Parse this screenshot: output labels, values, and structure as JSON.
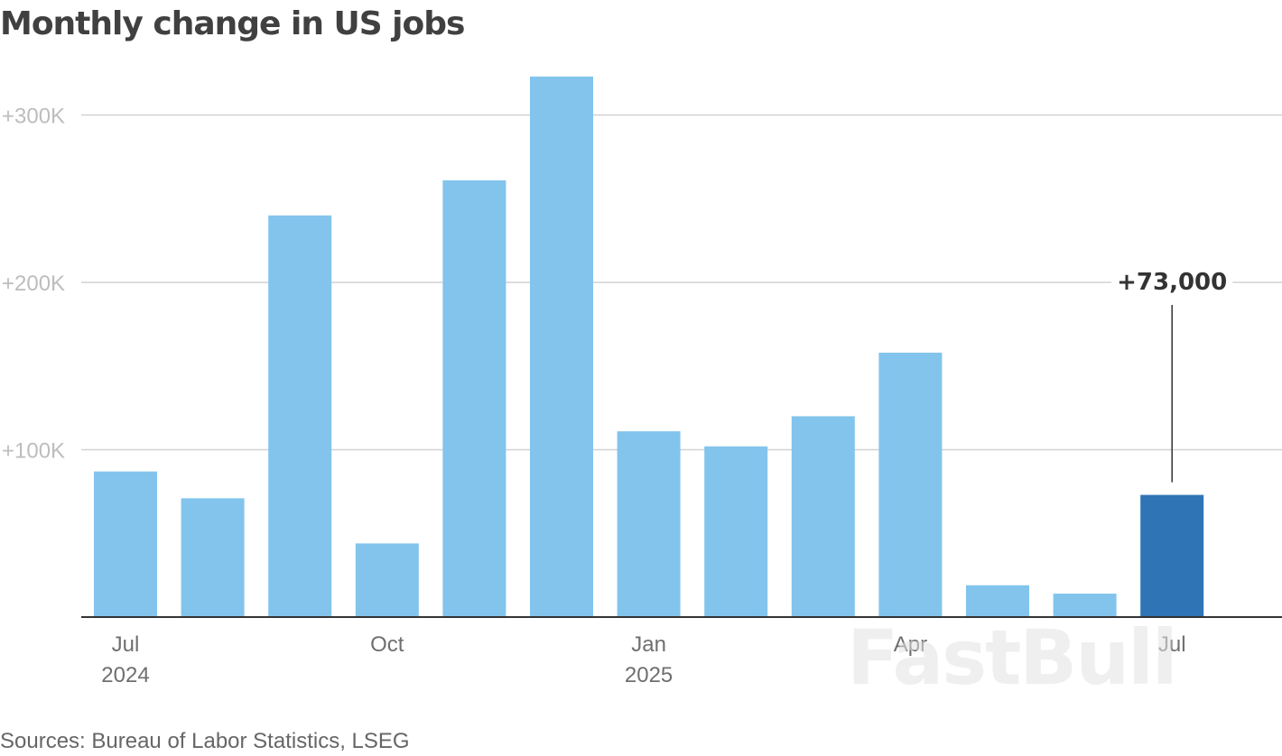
{
  "chart_data": {
    "type": "bar",
    "title": "Monthly change in US jobs",
    "xlabel": "",
    "ylabel": "",
    "ylim": [
      0,
      320000
    ],
    "y_ticks": [
      {
        "value": 100000,
        "label": "+100K"
      },
      {
        "value": 200000,
        "label": "+200K"
      },
      {
        "value": 300000,
        "label": "+300K"
      }
    ],
    "grid": true,
    "legend": "none",
    "categories": [
      "Jul 2024",
      "Aug 2024",
      "Sep 2024",
      "Oct 2024",
      "Nov 2024",
      "Dec 2024",
      "Jan 2025",
      "Feb 2025",
      "Mar 2025",
      "Apr 2025",
      "May 2025",
      "Jun 2025",
      "Jul 2025"
    ],
    "values": [
      87000,
      71000,
      240000,
      44000,
      261000,
      323000,
      111000,
      102000,
      120000,
      158000,
      19000,
      14000,
      73000
    ],
    "x_tick_labels": [
      {
        "index": 0,
        "month": "Jul",
        "year": "2024"
      },
      {
        "index": 3,
        "month": "Oct",
        "year": ""
      },
      {
        "index": 6,
        "month": "Jan",
        "year": "2025"
      },
      {
        "index": 9,
        "month": "Apr",
        "year": ""
      },
      {
        "index": 12,
        "month": "Jul",
        "year": ""
      }
    ],
    "highlight": {
      "index": 12,
      "label": "+73,000"
    },
    "colors": {
      "bar": "#82c4ec",
      "highlight": "#2f74b5",
      "grid": "#d2d2d2",
      "axis": "#333333"
    }
  },
  "source": "Sources: Bureau of Labor Statistics, LSEG",
  "watermark": "FastBull"
}
